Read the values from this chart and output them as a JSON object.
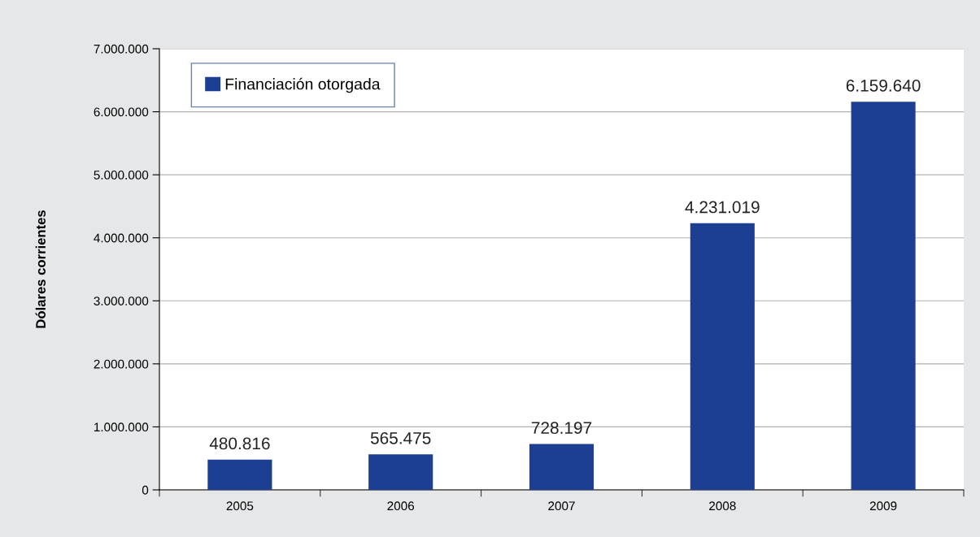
{
  "chart_data": {
    "type": "bar",
    "ylabel": "Dólares corrientes",
    "categories": [
      "2005",
      "2006",
      "2007",
      "2008",
      "2009"
    ],
    "series": [
      {
        "name": "Financiación otorgada",
        "color": "#1c3f94",
        "values": [
          480816,
          565475,
          728197,
          4231019,
          6159640
        ]
      }
    ],
    "value_labels": [
      "480.816",
      "565.475",
      "728.197",
      "4.231.019",
      "6.159.640"
    ],
    "ylim": [
      0,
      7000000
    ],
    "yticks": [
      {
        "value": 0,
        "label": "0"
      },
      {
        "value": 1000000,
        "label": "1.000.000"
      },
      {
        "value": 2000000,
        "label": "2.000.000"
      },
      {
        "value": 3000000,
        "label": "3.000.000"
      },
      {
        "value": 4000000,
        "label": "4.000.000"
      },
      {
        "value": 5000000,
        "label": "5.000.000"
      },
      {
        "value": 6000000,
        "label": "6.000.000"
      },
      {
        "value": 7000000,
        "label": "7.000.000"
      }
    ],
    "grid": "y",
    "legend": "top left"
  }
}
